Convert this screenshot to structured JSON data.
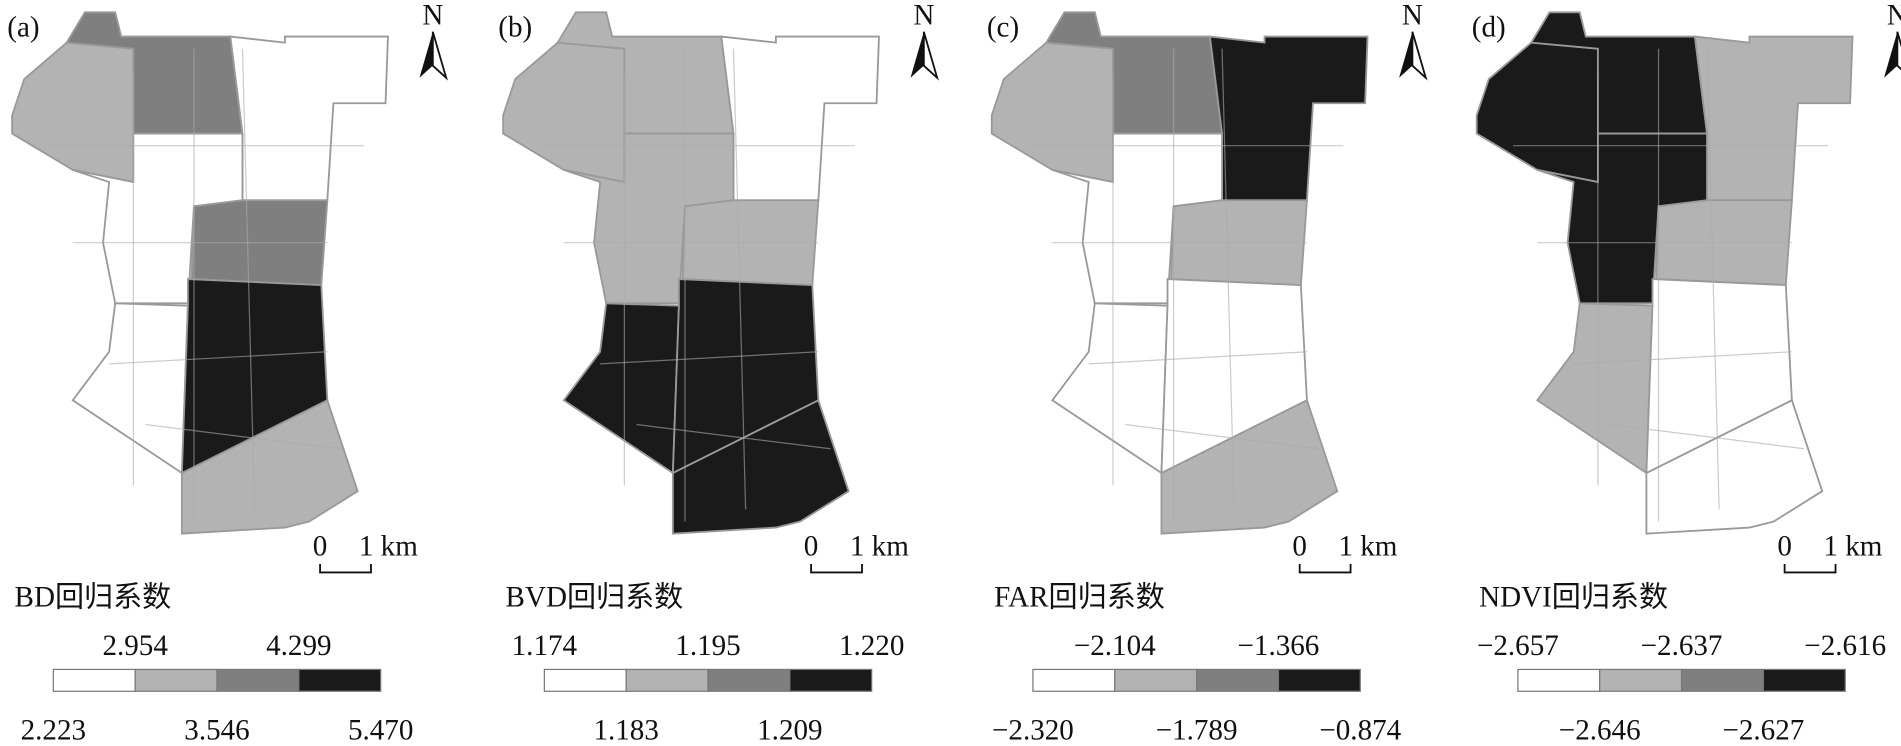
{
  "legend_colors": [
    "#ffffff",
    "#b3b3b3",
    "#7f7f7f",
    "#1a1a1a"
  ],
  "panels": [
    {
      "label": "(a)",
      "north": "N",
      "scale_zero": "0",
      "scale_unit": "1 km",
      "legend_title": "BD回归系数",
      "breaks": [
        "2.223",
        "2.954",
        "3.546",
        "4.299",
        "5.470"
      ]
    },
    {
      "label": "(b)",
      "north": "N",
      "scale_zero": "0",
      "scale_unit": "1 km",
      "legend_title": "BVD回归系数",
      "breaks": [
        "1.174",
        "1.183",
        "1.195",
        "1.209",
        "1.220"
      ]
    },
    {
      "label": "(c)",
      "north": "N",
      "scale_zero": "0",
      "scale_unit": "1 km",
      "legend_title": "FAR回归系数",
      "breaks": [
        "−2.320",
        "−2.104",
        "−1.789",
        "−1.366",
        "−0.874"
      ]
    },
    {
      "label": "(d)",
      "north": "N",
      "scale_zero": "0",
      "scale_unit": "1 km",
      "legend_title": "NDVI回归系数",
      "breaks": [
        "−2.657",
        "−2.646",
        "−2.637",
        "−2.627",
        "−2.616"
      ]
    }
  ]
}
